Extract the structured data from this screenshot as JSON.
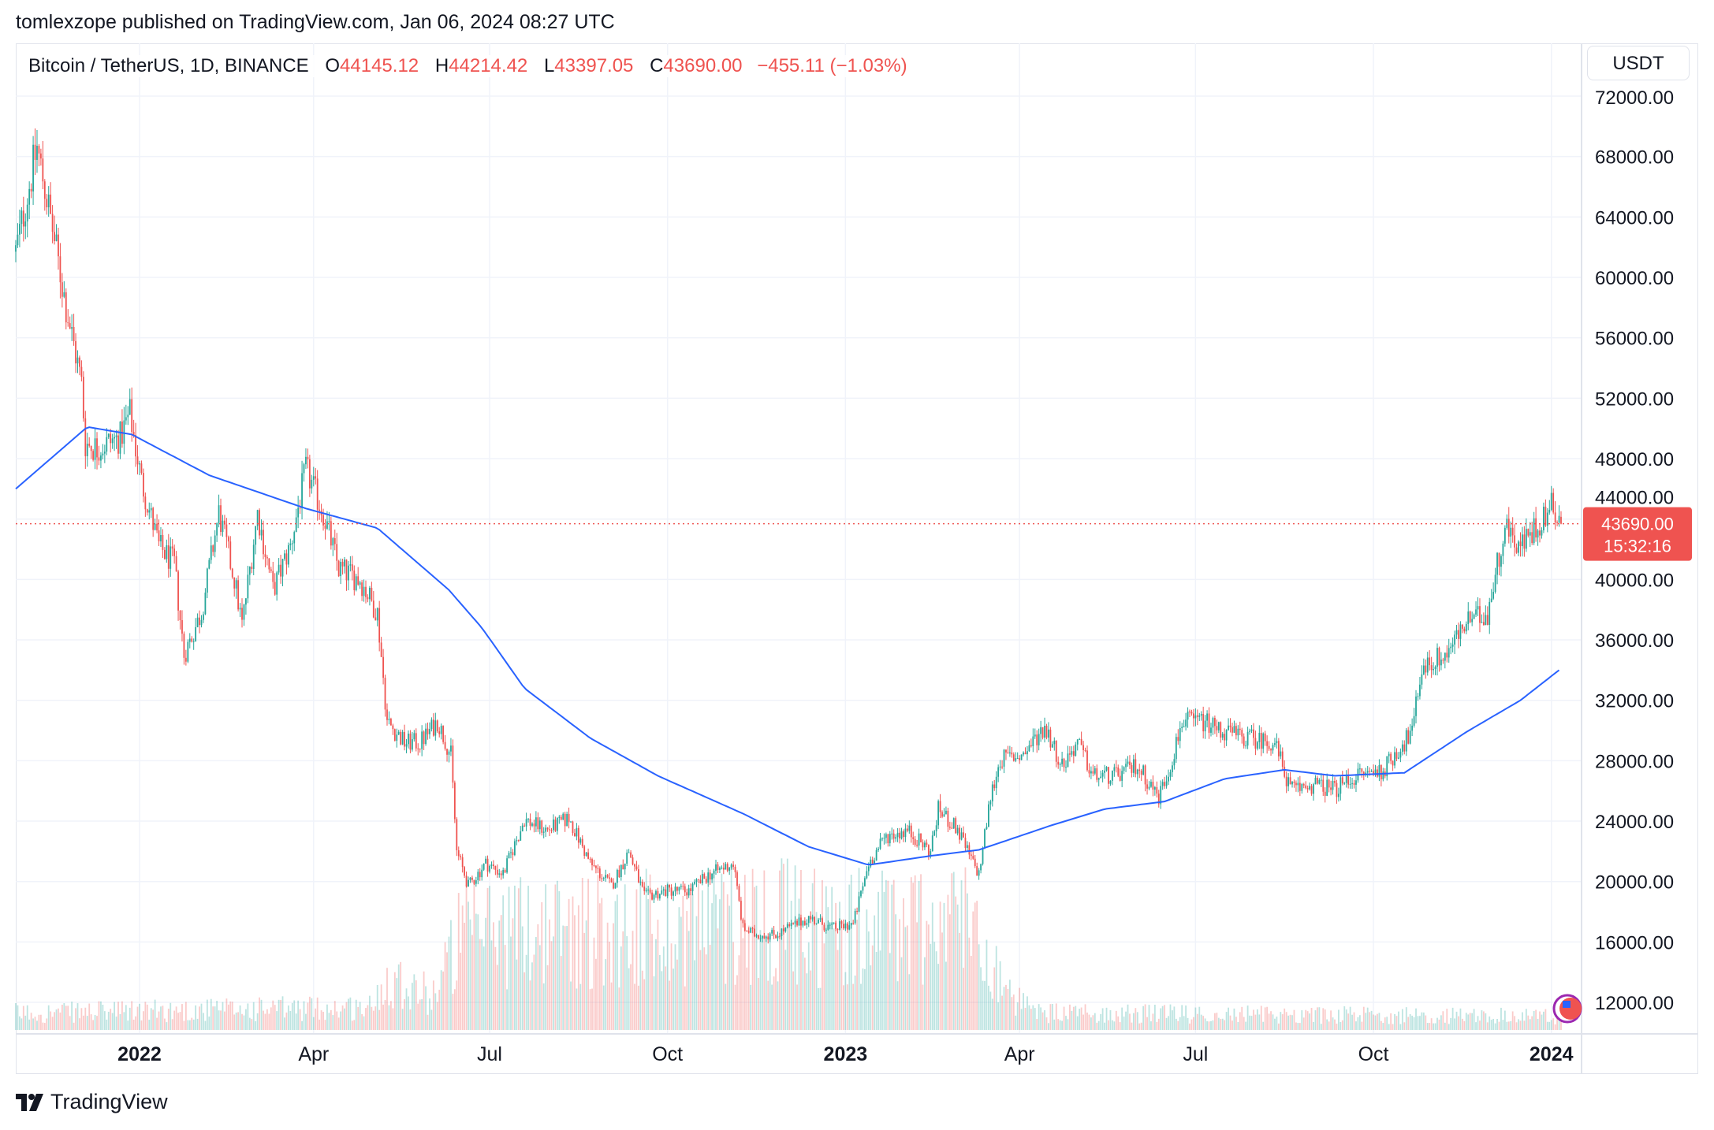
{
  "header": {
    "published": "tomlexzope published on TradingView.com, Jan 06, 2024 08:27 UTC"
  },
  "legend": {
    "symbol": "Bitcoin / TetherUS, 1D, BINANCE",
    "o_label": "O",
    "o": "44145.12",
    "h_label": "H",
    "h": "44214.42",
    "l_label": "L",
    "l": "43397.05",
    "c_label": "C",
    "c": "43690.00",
    "change": "−455.11 (−1.03%)"
  },
  "currency": "USDT",
  "price_label": {
    "price": "43690.00",
    "countdown": "15:32:16"
  },
  "footer": {
    "brand": "TradingView"
  },
  "colors": {
    "up": "#26a69a",
    "down": "#ef5350",
    "ma": "#2962ff",
    "grid": "#f0f3fa"
  },
  "chart_data": {
    "type": "candlestick",
    "interval": "1D",
    "ylim": [
      10000,
      72000
    ],
    "y_ticks": [
      "72000.00",
      "68000.00",
      "64000.00",
      "60000.00",
      "56000.00",
      "52000.00",
      "48000.00",
      "44000.00",
      "40000.00",
      "36000.00",
      "32000.00",
      "28000.00",
      "24000.00",
      "20000.00",
      "16000.00",
      "12000.00"
    ],
    "x_range": [
      "2021-10-29",
      "2024-01-06"
    ],
    "x_ticks": [
      {
        "date": "2022-01-01",
        "label": "2022",
        "bold": true
      },
      {
        "date": "2022-04-01",
        "label": "Apr"
      },
      {
        "date": "2022-07-01",
        "label": "Jul"
      },
      {
        "date": "2022-10-01",
        "label": "Oct"
      },
      {
        "date": "2023-01-01",
        "label": "2023",
        "bold": true
      },
      {
        "date": "2023-04-01",
        "label": "Apr"
      },
      {
        "date": "2023-07-01",
        "label": "Jul"
      },
      {
        "date": "2023-10-01",
        "label": "Oct"
      },
      {
        "date": "2024-01-01",
        "label": "2024",
        "bold": true
      }
    ],
    "grid": true,
    "last_price": 43690.0,
    "price_path": [
      [
        "2021-10-29",
        61700
      ],
      [
        "2021-11-09",
        68600
      ],
      [
        "2021-11-15",
        64600
      ],
      [
        "2021-11-24",
        58100
      ],
      [
        "2021-12-02",
        53000
      ],
      [
        "2021-12-04",
        49000
      ],
      [
        "2021-12-10",
        48700
      ],
      [
        "2021-12-22",
        49400
      ],
      [
        "2021-12-27",
        51000
      ],
      [
        "2022-01-02",
        46500
      ],
      [
        "2022-01-11",
        42200
      ],
      [
        "2022-01-19",
        41000
      ],
      [
        "2022-01-24",
        35000
      ],
      [
        "2022-02-02",
        37800
      ],
      [
        "2022-02-11",
        44400
      ],
      [
        "2022-02-19",
        40000
      ],
      [
        "2022-02-23",
        37000
      ],
      [
        "2022-03-03",
        44400
      ],
      [
        "2022-03-11",
        39300
      ],
      [
        "2022-03-20",
        42200
      ],
      [
        "2022-03-28",
        47300
      ],
      [
        "2022-04-06",
        44400
      ],
      [
        "2022-04-14",
        40700
      ],
      [
        "2022-04-25",
        40000
      ],
      [
        "2022-05-04",
        37800
      ],
      [
        "2022-05-09",
        30600
      ],
      [
        "2022-05-18",
        29200
      ],
      [
        "2022-05-26",
        29200
      ],
      [
        "2022-06-04",
        30600
      ],
      [
        "2022-06-11",
        28400
      ],
      [
        "2022-06-14",
        22000
      ],
      [
        "2022-06-20",
        19700
      ],
      [
        "2022-06-29",
        21200
      ],
      [
        "2022-07-08",
        20500
      ],
      [
        "2022-07-19",
        24100
      ],
      [
        "2022-07-31",
        23400
      ],
      [
        "2022-08-11",
        24200
      ],
      [
        "2022-08-22",
        21200
      ],
      [
        "2022-09-02",
        19700
      ],
      [
        "2022-09-11",
        22000
      ],
      [
        "2022-09-19",
        19000
      ],
      [
        "2022-10-01",
        19400
      ],
      [
        "2022-10-12",
        19400
      ],
      [
        "2022-10-23",
        20500
      ],
      [
        "2022-11-04",
        21200
      ],
      [
        "2022-11-09",
        16900
      ],
      [
        "2022-11-15",
        16500
      ],
      [
        "2022-11-26",
        16500
      ],
      [
        "2022-12-13",
        17600
      ],
      [
        "2022-12-25",
        16900
      ],
      [
        "2023-01-05",
        17200
      ],
      [
        "2023-01-13",
        21200
      ],
      [
        "2023-01-22",
        23000
      ],
      [
        "2023-02-02",
        23400
      ],
      [
        "2023-02-14",
        22000
      ],
      [
        "2023-02-18",
        24800
      ],
      [
        "2023-02-28",
        23400
      ],
      [
        "2023-03-08",
        21200
      ],
      [
        "2023-03-11",
        20500
      ],
      [
        "2023-03-17",
        25600
      ],
      [
        "2023-03-22",
        28100
      ],
      [
        "2023-04-03",
        28400
      ],
      [
        "2023-04-14",
        30300
      ],
      [
        "2023-04-23",
        27700
      ],
      [
        "2023-05-01",
        29200
      ],
      [
        "2023-05-09",
        27000
      ],
      [
        "2023-05-21",
        27000
      ],
      [
        "2023-06-01",
        27700
      ],
      [
        "2023-06-12",
        25600
      ],
      [
        "2023-06-18",
        27700
      ],
      [
        "2023-06-24",
        30600
      ],
      [
        "2023-07-05",
        30600
      ],
      [
        "2023-07-16",
        29900
      ],
      [
        "2023-07-28",
        29500
      ],
      [
        "2023-08-11",
        29200
      ],
      [
        "2023-08-19",
        26100
      ],
      [
        "2023-08-31",
        26400
      ],
      [
        "2023-09-11",
        26100
      ],
      [
        "2023-09-22",
        27000
      ],
      [
        "2023-10-06",
        27400
      ],
      [
        "2023-10-21",
        29900
      ],
      [
        "2023-10-26",
        34200
      ],
      [
        "2023-11-07",
        35000
      ],
      [
        "2023-11-18",
        37100
      ],
      [
        "2023-11-29",
        37800
      ],
      [
        "2023-12-08",
        43600
      ],
      [
        "2023-12-16",
        42200
      ],
      [
        "2023-12-25",
        43600
      ],
      [
        "2024-01-02",
        45000
      ],
      [
        "2024-01-06",
        43690
      ]
    ],
    "moving_average": [
      [
        "2021-10-29",
        46000
      ],
      [
        "2021-12-05",
        50100
      ],
      [
        "2021-12-28",
        49600
      ],
      [
        "2022-02-06",
        46900
      ],
      [
        "2022-03-28",
        44700
      ],
      [
        "2022-05-04",
        43400
      ],
      [
        "2022-06-10",
        39300
      ],
      [
        "2022-06-27",
        36800
      ],
      [
        "2022-07-19",
        32800
      ],
      [
        "2022-08-22",
        29500
      ],
      [
        "2022-09-26",
        27000
      ],
      [
        "2022-11-09",
        24500
      ],
      [
        "2022-12-13",
        22300
      ],
      [
        "2023-01-13",
        21100
      ],
      [
        "2023-02-14",
        21700
      ],
      [
        "2023-03-11",
        22100
      ],
      [
        "2023-04-17",
        23700
      ],
      [
        "2023-05-15",
        24800
      ],
      [
        "2023-06-15",
        25300
      ],
      [
        "2023-07-16",
        26800
      ],
      [
        "2023-08-16",
        27400
      ],
      [
        "2023-09-11",
        27000
      ],
      [
        "2023-10-17",
        27200
      ],
      [
        "2023-11-18",
        29900
      ],
      [
        "2023-12-16",
        32000
      ],
      [
        "2024-01-06",
        34100
      ]
    ],
    "volume_level": [
      [
        "2021-10-29",
        0.15
      ],
      [
        "2022-05-01",
        0.2
      ],
      [
        "2022-05-10",
        0.5
      ],
      [
        "2022-06-01",
        0.3
      ],
      [
        "2022-06-15",
        0.8
      ],
      [
        "2022-07-01",
        0.9
      ],
      [
        "2022-10-01",
        0.9
      ],
      [
        "2022-11-10",
        1.0
      ],
      [
        "2022-12-31",
        0.9
      ],
      [
        "2023-03-10",
        1.0
      ],
      [
        "2023-03-25",
        0.3
      ],
      [
        "2023-04-10",
        0.15
      ],
      [
        "2024-01-06",
        0.12
      ]
    ]
  }
}
